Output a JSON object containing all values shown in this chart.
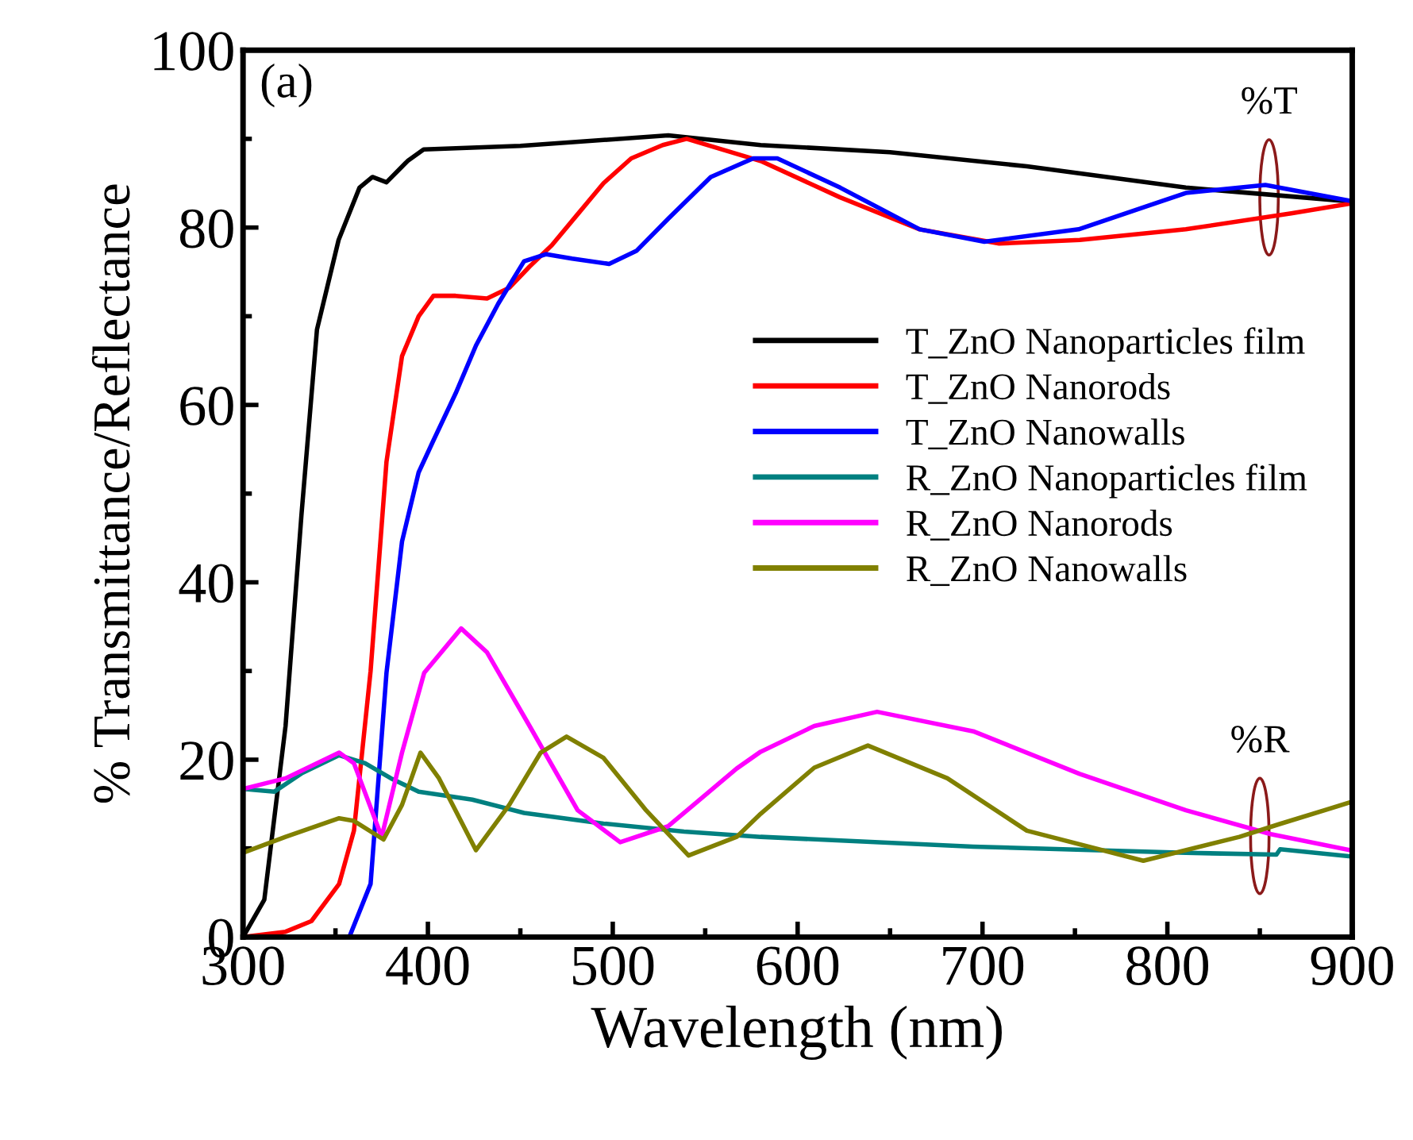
{
  "chart_data": {
    "type": "line",
    "xlabel": "Wavelength (nm)",
    "ylabel": "% Transmittance/Reflectance",
    "xlim": [
      300,
      900
    ],
    "ylim": [
      0,
      100
    ],
    "xticks": [
      300,
      400,
      500,
      600,
      700,
      800,
      900
    ],
    "yticks": [
      0,
      20,
      40,
      60,
      80,
      100
    ],
    "legend": "center right",
    "grid": false,
    "marker": "none",
    "line_style": "solid",
    "annotations": [
      "(a)",
      {
        "text": "%T",
        "x": 855,
        "y": 83.4
      },
      {
        "text": "%R",
        "x": 850,
        "y": 11.4
      }
    ],
    "series": [
      {
        "name": "T_ZnO Nanoparticles film",
        "color": "#000000",
        "x": [
          300,
          311.5,
          323,
          331.6,
          340,
          351.7,
          363,
          370,
          377.6,
          389,
          397.7,
          450,
          530,
          580,
          650,
          724,
          810,
          896,
          900
        ],
        "values": [
          0,
          4.2,
          23.8,
          47.6,
          68.5,
          78.6,
          84.5,
          85.7,
          85.1,
          87.5,
          88.8,
          89.2,
          90.4,
          89.3,
          88.5,
          86.9,
          84.5,
          83.0,
          83.0
        ]
      },
      {
        "name": "T_ZnO Nanorods",
        "color": "#ff0000",
        "x": [
          300,
          323,
          337,
          352,
          360,
          369,
          377.6,
          386,
          395,
          403,
          415,
          432,
          444,
          455,
          467,
          481,
          495,
          510,
          527,
          540,
          580,
          623,
          666,
          709,
          752.6,
          810,
          867,
          899
        ],
        "values": [
          0,
          0.6,
          1.8,
          6,
          12,
          30,
          53.6,
          65.5,
          70,
          72.3,
          72.3,
          72,
          73.2,
          75.6,
          78,
          81.5,
          85,
          87.8,
          89.3,
          90,
          87.5,
          83.4,
          79.8,
          78.2,
          78.6,
          79.8,
          81.6,
          82.7
        ]
      },
      {
        "name": "T_ZnO Nanowalls",
        "color": "#0000ff",
        "x": [
          300,
          357.5,
          369,
          377.6,
          386,
          395,
          403,
          415,
          426,
          438,
          452,
          464,
          478,
          498,
          513,
          530,
          553,
          576,
          589,
          623,
          666,
          701,
          752,
          810,
          853,
          899
        ],
        "values": [
          0,
          0,
          6,
          29.8,
          44.6,
          52.4,
          56,
          61.3,
          66.7,
          71.4,
          76.2,
          77,
          76.5,
          75.9,
          77.4,
          81,
          85.7,
          87.8,
          87.8,
          84.5,
          79.8,
          78.4,
          79.8,
          83.9,
          84.8,
          83.0
        ]
      },
      {
        "name": "R_ZnO Nanoparticles film",
        "color": "#008080",
        "x": [
          300,
          317,
          332,
          352,
          366,
          380,
          395,
          424,
          452,
          495,
          538.5,
          580,
          695,
          810,
          859,
          861,
          899
        ],
        "values": [
          16.7,
          16.4,
          18.5,
          20.5,
          19.6,
          17.9,
          16.4,
          15.5,
          14,
          12.8,
          11.9,
          11.3,
          10.2,
          9.5,
          9.3,
          9.9,
          9.1
        ]
      },
      {
        "name": "R_ZnO Nanorods",
        "color": "#ff00ff",
        "x": [
          300,
          323,
          352,
          360,
          375,
          386,
          398,
          418,
          432,
          455,
          481,
          504,
          530,
          567,
          580,
          609,
          643,
          695,
          752.6,
          810,
          856,
          899
        ],
        "values": [
          16.7,
          17.9,
          20.8,
          19.6,
          11.3,
          20.8,
          29.8,
          34.8,
          32.1,
          23.8,
          14.3,
          10.7,
          12.5,
          19,
          20.9,
          23.8,
          25.4,
          23.2,
          18.4,
          14.3,
          11.6,
          9.8
        ]
      },
      {
        "name": "R_ZnO Nanowalls",
        "color": "#808000",
        "x": [
          300,
          323,
          352,
          360,
          376,
          386,
          396,
          406,
          426,
          444,
          461,
          475,
          495,
          518,
          541,
          567,
          580,
          609,
          638,
          681,
          724,
          787,
          839,
          860,
          899
        ],
        "values": [
          9.5,
          11.3,
          13.4,
          13.1,
          11,
          14.9,
          20.8,
          17.9,
          9.8,
          14.9,
          20.8,
          22.6,
          20.2,
          14.3,
          9.2,
          11.3,
          13.9,
          19.1,
          21.6,
          17.9,
          12,
          8.6,
          11.3,
          12.7,
          15.2
        ]
      }
    ]
  }
}
